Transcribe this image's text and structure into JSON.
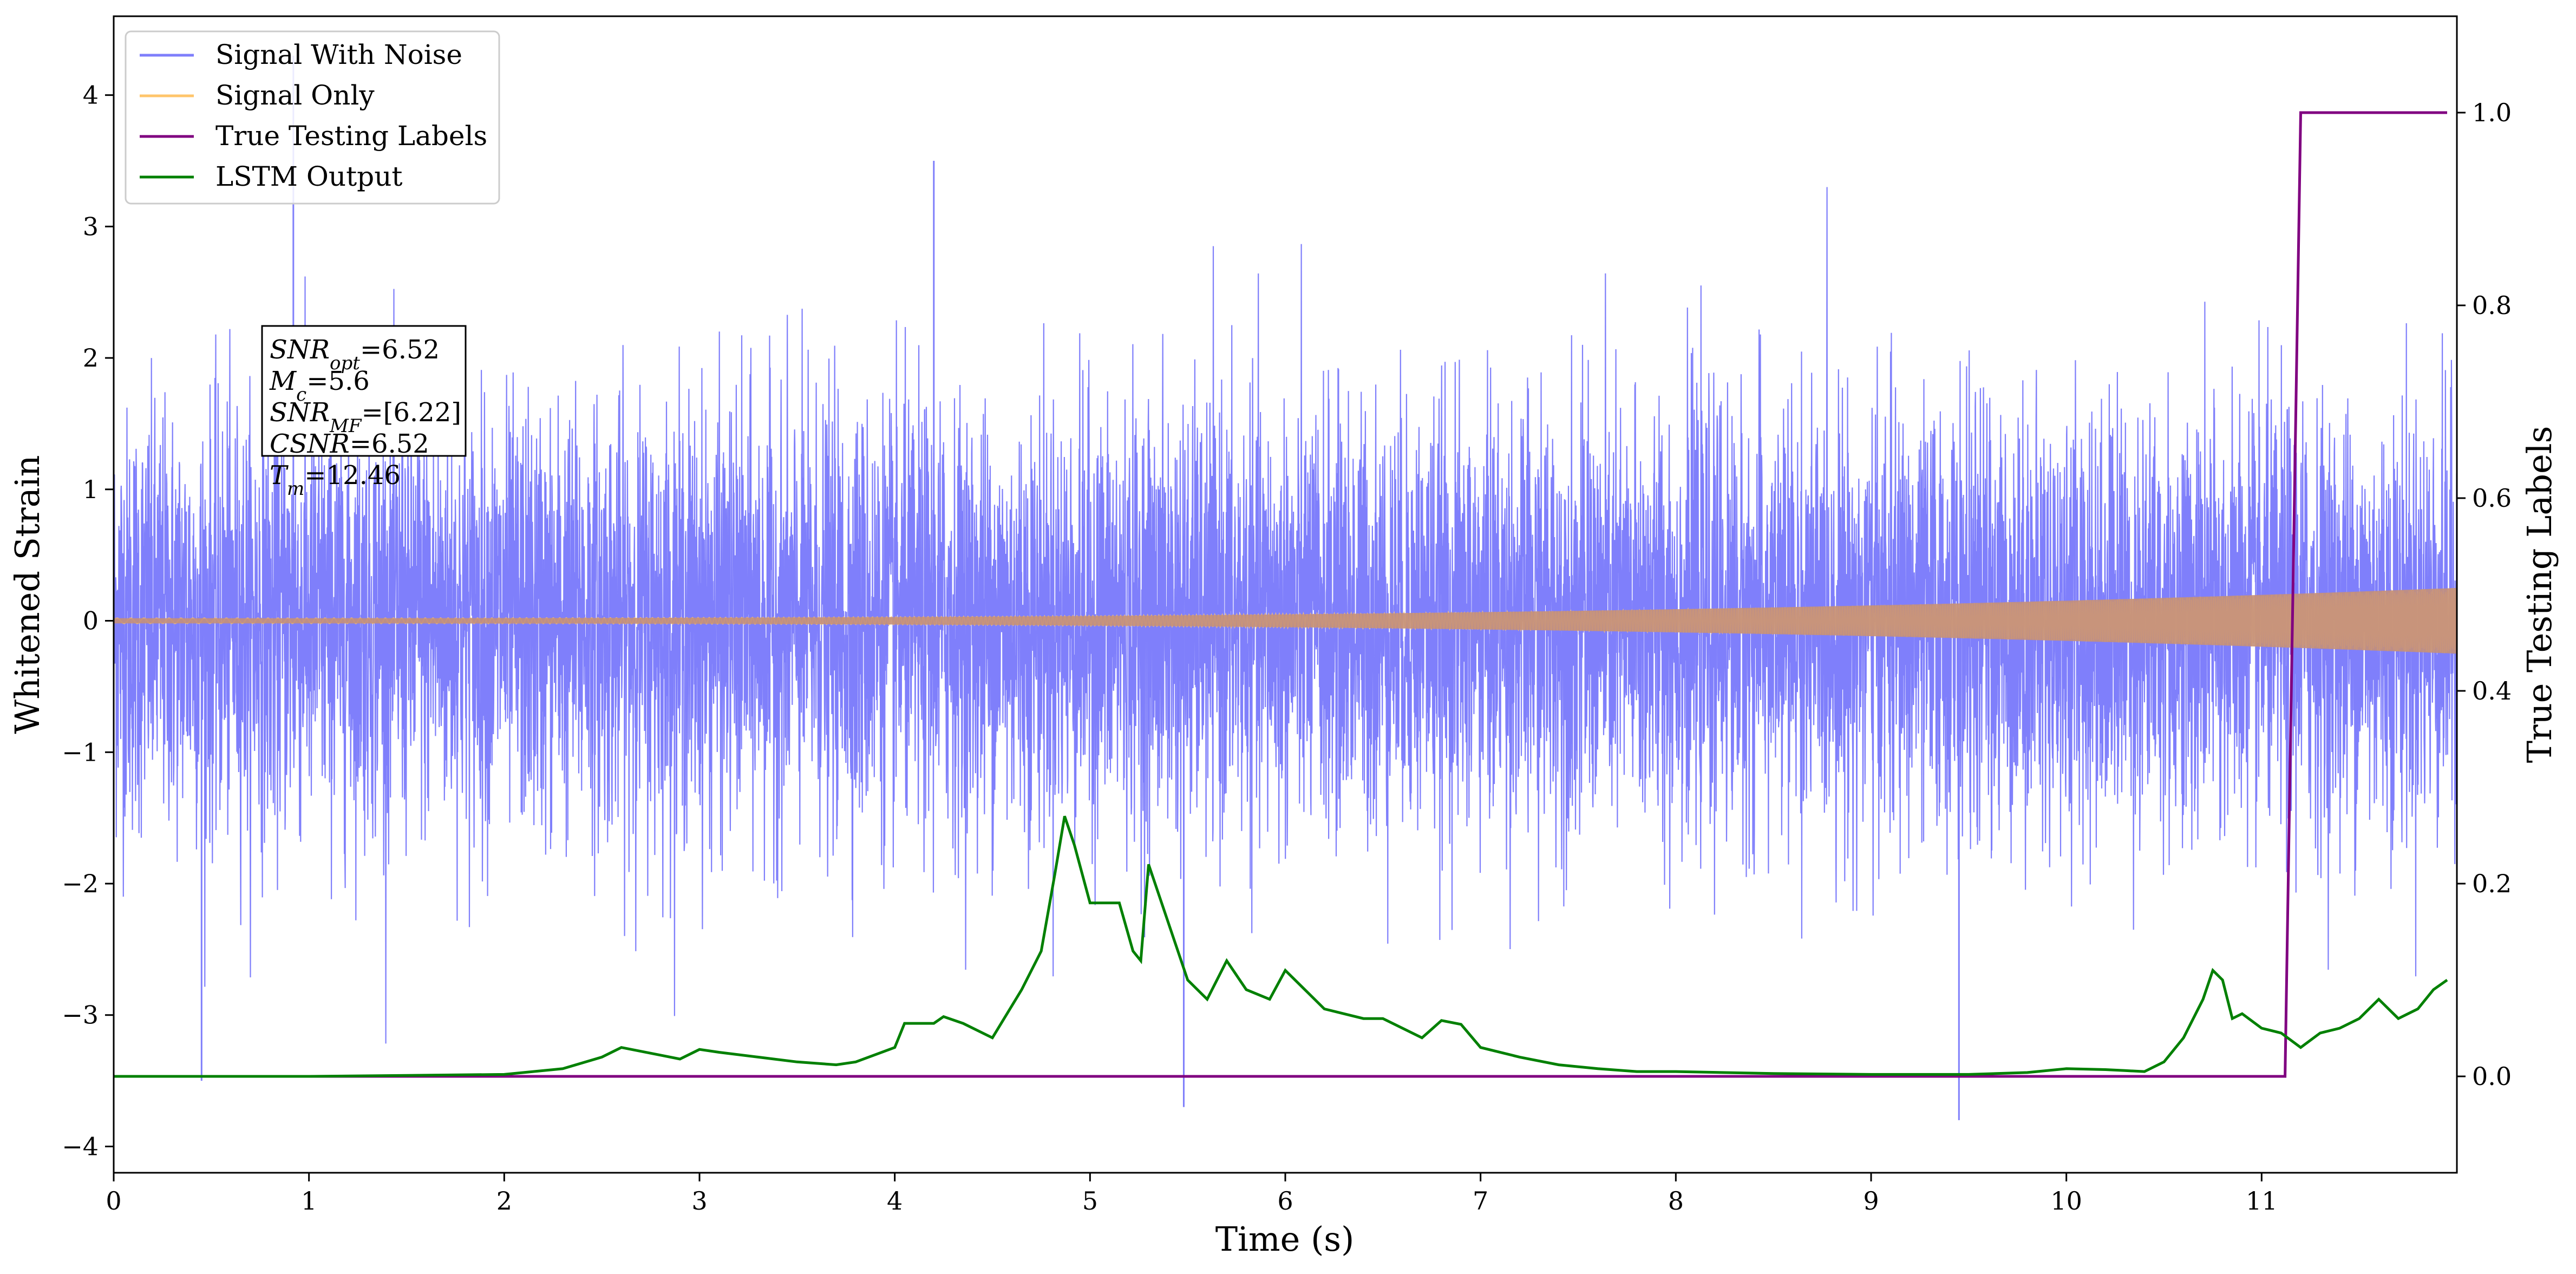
{
  "chart_data": {
    "type": "line",
    "xlabel": "Time (s)",
    "ylabel": "Whitened Strain",
    "y2label": "True Testing Labels",
    "xlim": [
      0,
      12.0
    ],
    "ylim": [
      -4.2,
      4.6
    ],
    "y2lim": [
      -0.1,
      1.1
    ],
    "xticks": [
      "0",
      "1",
      "2",
      "3",
      "4",
      "5",
      "6",
      "7",
      "8",
      "9",
      "10",
      "11"
    ],
    "yticks": [
      "−4",
      "−3",
      "−2",
      "−1",
      "0",
      "1",
      "2",
      "3",
      "4"
    ],
    "y2ticks": [
      "0.0",
      "0.2",
      "0.4",
      "0.6",
      "0.8",
      "1.0"
    ],
    "grid": false,
    "legend": {
      "position": "top-left",
      "entries": [
        "Signal With Noise",
        "Signal Only",
        "True Testing Labels",
        "LSTM Output"
      ]
    },
    "colors": {
      "noise": "#7f7ffb",
      "signal": "#ffc56b",
      "labels": "#800080",
      "lstm": "#008000"
    },
    "series": [
      {
        "name": "Signal With Noise",
        "axis": "left",
        "description_values": {
          "typical_std": 0.8,
          "max": 4.3,
          "min": -3.8,
          "peaks": [
            [
              0.92,
              4.3
            ],
            [
              4.2,
              3.5
            ],
            [
              5.48,
              -3.7
            ],
            [
              9.45,
              -3.8
            ],
            [
              0.45,
              -3.5
            ]
          ]
        }
      },
      {
        "name": "Signal Only",
        "axis": "left",
        "amplitude_start": 0.02,
        "amplitude_end": 0.25
      },
      {
        "name": "True Testing Labels",
        "axis": "right",
        "x": [
          0,
          11.12,
          11.2,
          11.95
        ],
        "y": [
          0.0,
          0.0,
          1.0,
          1.0
        ]
      },
      {
        "name": "LSTM Output",
        "axis": "right",
        "x": [
          0,
          1.0,
          2.0,
          2.3,
          2.5,
          2.6,
          2.8,
          2.9,
          3.0,
          3.1,
          3.3,
          3.5,
          3.7,
          3.8,
          4.0,
          4.05,
          4.2,
          4.25,
          4.35,
          4.5,
          4.65,
          4.75,
          4.82,
          4.87,
          4.92,
          5.0,
          5.1,
          5.15,
          5.22,
          5.26,
          5.3,
          5.4,
          5.5,
          5.6,
          5.7,
          5.8,
          5.92,
          6.0,
          6.1,
          6.2,
          6.3,
          6.4,
          6.5,
          6.6,
          6.7,
          6.8,
          6.9,
          7.0,
          7.2,
          7.4,
          7.6,
          7.8,
          8.0,
          8.5,
          9.0,
          9.5,
          9.8,
          10.0,
          10.2,
          10.3,
          10.4,
          10.5,
          10.6,
          10.7,
          10.75,
          10.8,
          10.85,
          10.9,
          11.0,
          11.1,
          11.2,
          11.3,
          11.4,
          11.5,
          11.6,
          11.7,
          11.8,
          11.88,
          11.95
        ],
        "y": [
          0.0,
          0.0,
          0.002,
          0.008,
          0.02,
          0.03,
          0.022,
          0.018,
          0.028,
          0.025,
          0.02,
          0.015,
          0.012,
          0.015,
          0.03,
          0.055,
          0.055,
          0.062,
          0.055,
          0.04,
          0.09,
          0.13,
          0.21,
          0.27,
          0.24,
          0.18,
          0.18,
          0.18,
          0.13,
          0.12,
          0.22,
          0.16,
          0.1,
          0.08,
          0.12,
          0.09,
          0.08,
          0.11,
          0.09,
          0.07,
          0.065,
          0.06,
          0.06,
          0.05,
          0.04,
          0.058,
          0.054,
          0.03,
          0.02,
          0.012,
          0.008,
          0.005,
          0.005,
          0.003,
          0.002,
          0.002,
          0.004,
          0.008,
          0.007,
          0.006,
          0.005,
          0.015,
          0.04,
          0.08,
          0.11,
          0.1,
          0.06,
          0.065,
          0.05,
          0.045,
          0.03,
          0.045,
          0.05,
          0.06,
          0.08,
          0.06,
          0.07,
          0.09,
          0.1
        ]
      }
    ]
  },
  "info_box": {
    "lines": [
      "SNR_opt=6.52",
      "M_c=5.6",
      "SNR_MF=[6.22]",
      "CSNR=6.52",
      "T_m=12.46"
    ],
    "snr_opt": "6.52",
    "mc": "5.6",
    "snr_mf": "[6.22]",
    "csnr": "6.52",
    "tm": "12.46"
  }
}
